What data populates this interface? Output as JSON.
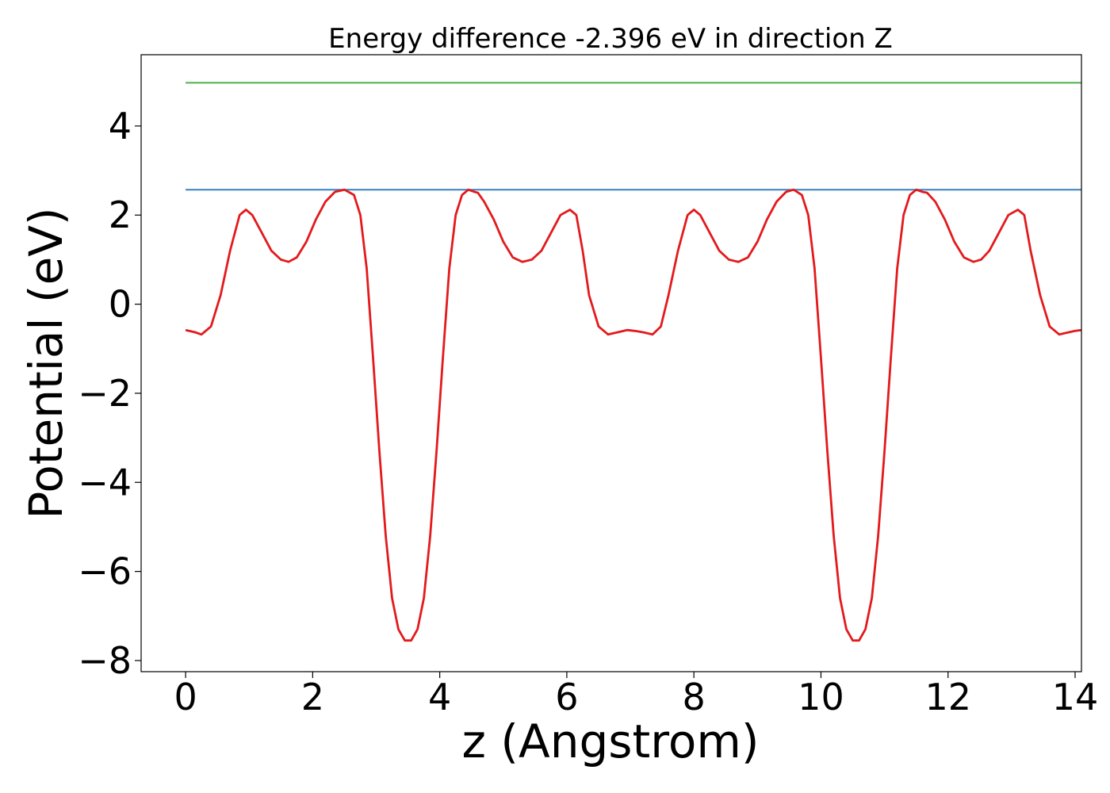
{
  "chart_data": {
    "type": "line",
    "title": "Energy difference -2.396 eV in direction Z",
    "xlabel": "z (Angstrom)",
    "ylabel": "Potential (eV)",
    "xlim": [
      -0.7,
      14.1
    ],
    "ylim": [
      -8.25,
      5.6
    ],
    "x_ticks": [
      0,
      2,
      4,
      6,
      8,
      10,
      12,
      14
    ],
    "x_tick_labels": [
      "0",
      "2",
      "4",
      "6",
      "8",
      "10",
      "12",
      "14"
    ],
    "y_ticks": [
      -8,
      -6,
      -4,
      -2,
      0,
      2,
      4
    ],
    "y_tick_labels": [
      "−8",
      "−6",
      "−4",
      "−2",
      "0",
      "2",
      "4"
    ],
    "grid": false,
    "series": [
      {
        "color": "#e31a1c",
        "x": [
          0,
          0.15,
          0.25,
          0.4,
          0.55,
          0.7,
          0.85,
          0.95,
          1.05,
          1.2,
          1.35,
          1.5,
          1.62,
          1.75,
          1.9,
          2.05,
          2.2,
          2.35,
          2.5,
          2.65,
          2.75,
          2.85,
          2.95,
          3.05,
          3.15,
          3.25,
          3.35,
          3.45,
          3.55,
          3.65,
          3.75,
          3.85,
          3.95,
          4.05,
          4.15,
          4.25,
          4.35,
          4.45,
          4.55,
          4.6,
          4.7,
          4.85,
          5.0,
          5.15,
          5.3,
          5.45,
          5.6,
          5.75,
          5.9,
          6.05,
          6.15,
          6.25,
          6.35,
          6.5,
          6.65,
          6.8,
          6.95,
          7.07,
          7.2,
          7.35,
          7.48,
          7.6,
          7.75,
          7.9,
          8.0,
          8.1,
          8.25,
          8.4,
          8.55,
          8.7,
          8.85,
          9.0,
          9.15,
          9.3,
          9.45,
          9.57,
          9.7,
          9.8,
          9.9,
          10.0,
          10.1,
          10.2,
          10.3,
          10.4,
          10.5,
          10.6,
          10.7,
          10.8,
          10.9,
          11.0,
          11.1,
          11.2,
          11.3,
          11.4,
          11.5,
          11.6,
          11.67,
          11.8,
          11.95,
          12.1,
          12.25,
          12.4,
          12.52,
          12.65,
          12.8,
          12.95,
          13.1,
          13.2,
          13.3,
          13.45,
          13.6,
          13.75,
          13.9,
          14.0,
          14.1
        ],
        "values": [
          -0.58,
          -0.63,
          -0.68,
          -0.5,
          0.2,
          1.2,
          2.0,
          2.12,
          2.0,
          1.6,
          1.2,
          1.0,
          0.95,
          1.05,
          1.4,
          1.9,
          2.3,
          2.52,
          2.57,
          2.45,
          2.0,
          0.8,
          -1.2,
          -3.3,
          -5.2,
          -6.6,
          -7.3,
          -7.55,
          -7.55,
          -7.3,
          -6.6,
          -5.2,
          -3.3,
          -1.2,
          0.8,
          2.0,
          2.45,
          2.57,
          2.52,
          2.5,
          2.3,
          1.9,
          1.4,
          1.05,
          0.95,
          1.0,
          1.2,
          1.6,
          2.0,
          2.12,
          2.0,
          1.2,
          0.2,
          -0.5,
          -0.68,
          -0.63,
          -0.58,
          -0.6,
          -0.63,
          -0.68,
          -0.5,
          0.2,
          1.2,
          2.0,
          2.12,
          2.0,
          1.6,
          1.2,
          1.0,
          0.95,
          1.05,
          1.4,
          1.9,
          2.3,
          2.52,
          2.57,
          2.45,
          2.0,
          0.8,
          -1.2,
          -3.3,
          -5.2,
          -6.6,
          -7.3,
          -7.55,
          -7.55,
          -7.3,
          -6.6,
          -5.2,
          -3.3,
          -1.2,
          0.8,
          2.0,
          2.45,
          2.57,
          2.52,
          2.5,
          2.3,
          1.9,
          1.4,
          1.05,
          0.95,
          1.0,
          1.2,
          1.6,
          2.0,
          2.12,
          2.0,
          1.2,
          0.2,
          -0.5,
          -0.68,
          -0.63,
          -0.6,
          -0.58
        ]
      },
      {
        "color": "#3a7fc1",
        "x": [
          0,
          14.1
        ],
        "values": [
          2.57,
          2.57
        ]
      },
      {
        "color": "#4daf4a",
        "x": [
          0,
          14.1
        ],
        "values": [
          4.97,
          4.97
        ]
      }
    ]
  }
}
